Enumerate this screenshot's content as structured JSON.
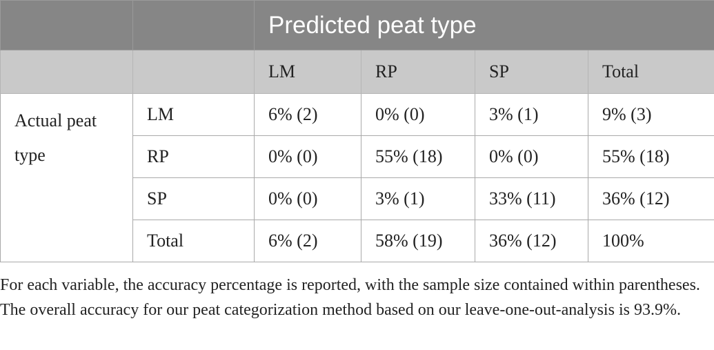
{
  "table": {
    "title": "Predicted peat type",
    "columns": [
      "LM",
      "RP",
      "SP",
      "Total"
    ],
    "row_group_label": "Actual peat type",
    "rows": [
      {
        "label": "LM",
        "cells": [
          "6% (2)",
          "0% (0)",
          "3% (1)",
          "9% (3)"
        ]
      },
      {
        "label": "RP",
        "cells": [
          "0% (0)",
          "55% (18)",
          "0% (0)",
          "55% (18)"
        ]
      },
      {
        "label": "SP",
        "cells": [
          "0% (0)",
          "3% (1)",
          "33% (11)",
          "36% (12)"
        ]
      },
      {
        "label": "Total",
        "cells": [
          "6% (2)",
          "58% (19)",
          "36% (12)",
          "100%"
        ]
      }
    ]
  },
  "footnote": "For each variable, the accuracy percentage is reported, with the sample size contained within parentheses. The overall accuracy for our peat categorization method based on our leave-one-out-analysis is 93.9%.",
  "colors": {
    "header_dark": "#868686",
    "header_light": "#c9c9c9",
    "border": "#a9a9a9"
  }
}
